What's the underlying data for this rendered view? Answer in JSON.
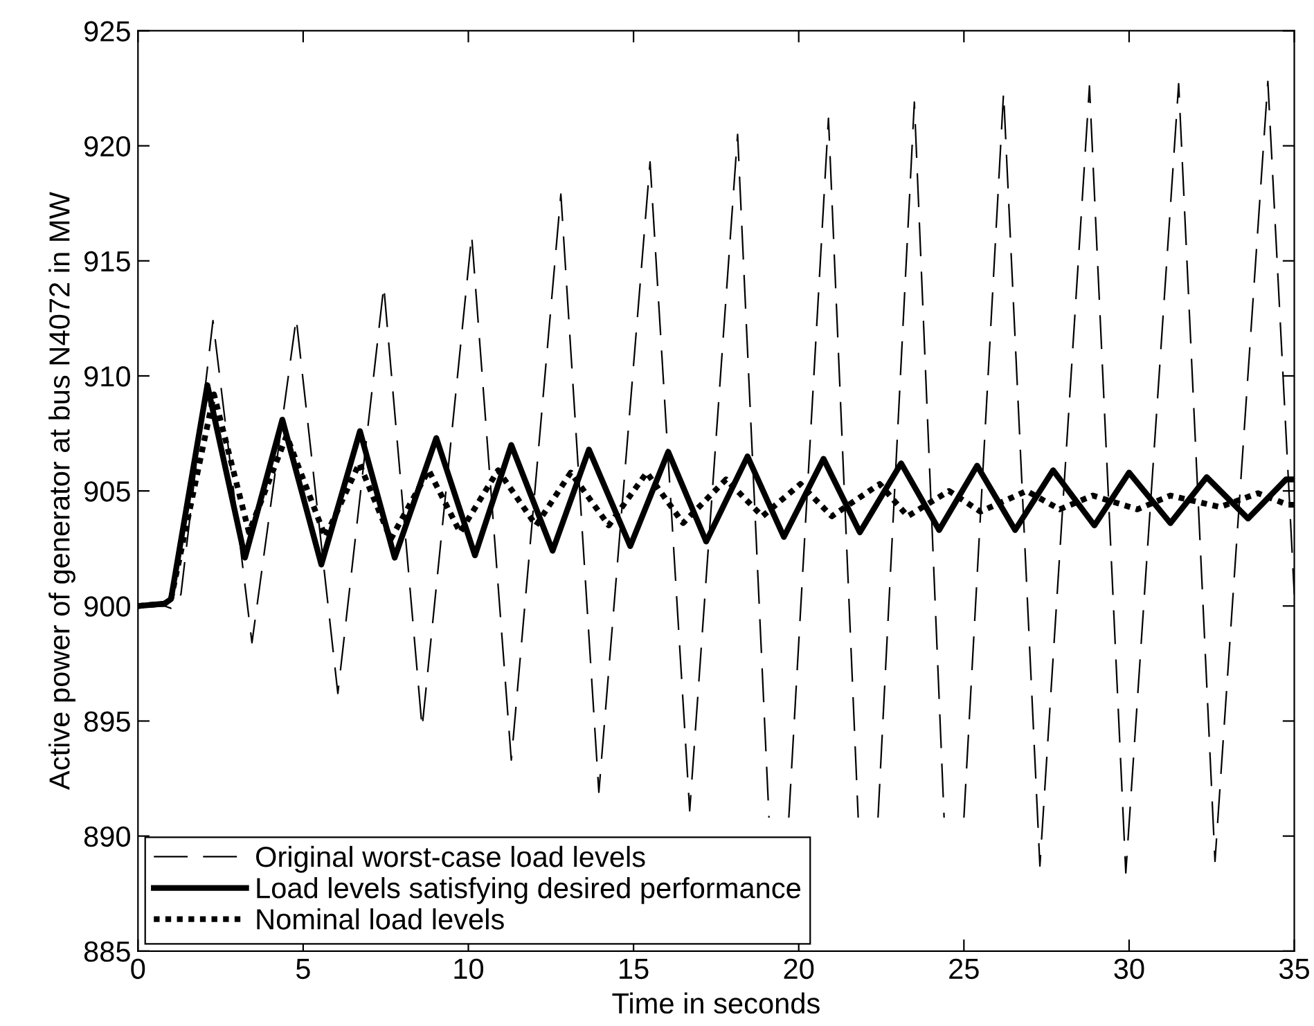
{
  "chart_data": {
    "type": "line",
    "xlabel": "Time in seconds",
    "ylabel": "Active power of generator at bus N4072 in MW",
    "xlim": [
      0,
      35
    ],
    "ylim": [
      885,
      925
    ],
    "xticks": [
      0,
      5,
      10,
      15,
      20,
      25,
      30,
      35
    ],
    "yticks": [
      885,
      890,
      895,
      900,
      905,
      910,
      915,
      920,
      925
    ],
    "grid": false,
    "legend": "bottom left",
    "marker": "none",
    "series": [
      {
        "name": "Original worst-case load levels",
        "color": "#000000",
        "line_style": "dashed",
        "x": [
          0,
          0.8,
          1.0,
          1.3,
          2.27,
          3.45,
          4.79,
          6.05,
          7.44,
          8.6,
          10.1,
          11.3,
          12.8,
          13.95,
          15.5,
          16.7,
          18.15,
          19.1,
          19.4,
          19.7,
          20.9,
          21.8,
          22.1,
          22.4,
          23.5,
          24.4,
          24.7,
          25.0,
          26.2,
          27.3,
          28.8,
          29.9,
          31.5,
          32.6,
          34.2,
          35
        ],
        "values": [
          900,
          900,
          899.9,
          900.5,
          912.4,
          898.4,
          912.5,
          896.2,
          913.9,
          894.7,
          916.1,
          893.3,
          917.9,
          891.9,
          919.3,
          891.1,
          920.5,
          890.8,
          null,
          890.8,
          921.2,
          890.8,
          null,
          890.8,
          921.9,
          890.8,
          null,
          890.8,
          922.3,
          888.7,
          922.6,
          888.4,
          922.7,
          888.9,
          922.8,
          900.5
        ]
      },
      {
        "name": "Load levels satisfying desired performance",
        "color": "#000000",
        "line_style": "solid",
        "x": [
          0,
          0.8,
          1.0,
          2.1,
          3.24,
          4.37,
          5.55,
          6.72,
          7.77,
          9.03,
          10.2,
          11.3,
          12.55,
          13.65,
          14.9,
          16.05,
          17.2,
          18.45,
          19.55,
          20.75,
          21.85,
          23.1,
          24.25,
          25.4,
          26.55,
          27.7,
          28.95,
          30.0,
          31.25,
          32.35,
          33.6,
          34.75,
          35
        ],
        "values": [
          900,
          900.1,
          900.3,
          909.6,
          902.1,
          908.1,
          901.8,
          907.6,
          902.1,
          907.3,
          902.2,
          907.0,
          902.4,
          906.8,
          902.6,
          906.7,
          902.8,
          906.5,
          903.0,
          906.4,
          903.2,
          906.2,
          903.3,
          906.1,
          903.3,
          905.9,
          903.5,
          905.8,
          903.6,
          905.6,
          903.8,
          905.5,
          905.5
        ]
      },
      {
        "name": "Nominal load levels",
        "color": "#000000",
        "line_style": "dotted",
        "x": [
          0,
          0.8,
          1.0,
          2.3,
          3.36,
          4.5,
          5.67,
          6.7,
          7.65,
          8.8,
          9.75,
          10.9,
          12.05,
          13.1,
          14.25,
          15.4,
          16.5,
          17.8,
          18.9,
          20.05,
          21.0,
          22.45,
          23.3,
          24.55,
          25.5,
          26.9,
          27.9,
          28.9,
          30.25,
          31.25,
          32.75,
          33.9,
          34.8,
          35
        ],
        "values": [
          900,
          900.1,
          900.3,
          909.2,
          903.2,
          907.4,
          903.0,
          906.2,
          902.9,
          905.9,
          903.2,
          905.9,
          903.5,
          905.8,
          903.5,
          905.8,
          903.6,
          905.5,
          903.9,
          905.3,
          903.9,
          905.3,
          903.9,
          905.0,
          904.1,
          905.0,
          904.2,
          904.8,
          904.2,
          904.8,
          904.3,
          904.9,
          904.4,
          904.4
        ]
      }
    ]
  }
}
